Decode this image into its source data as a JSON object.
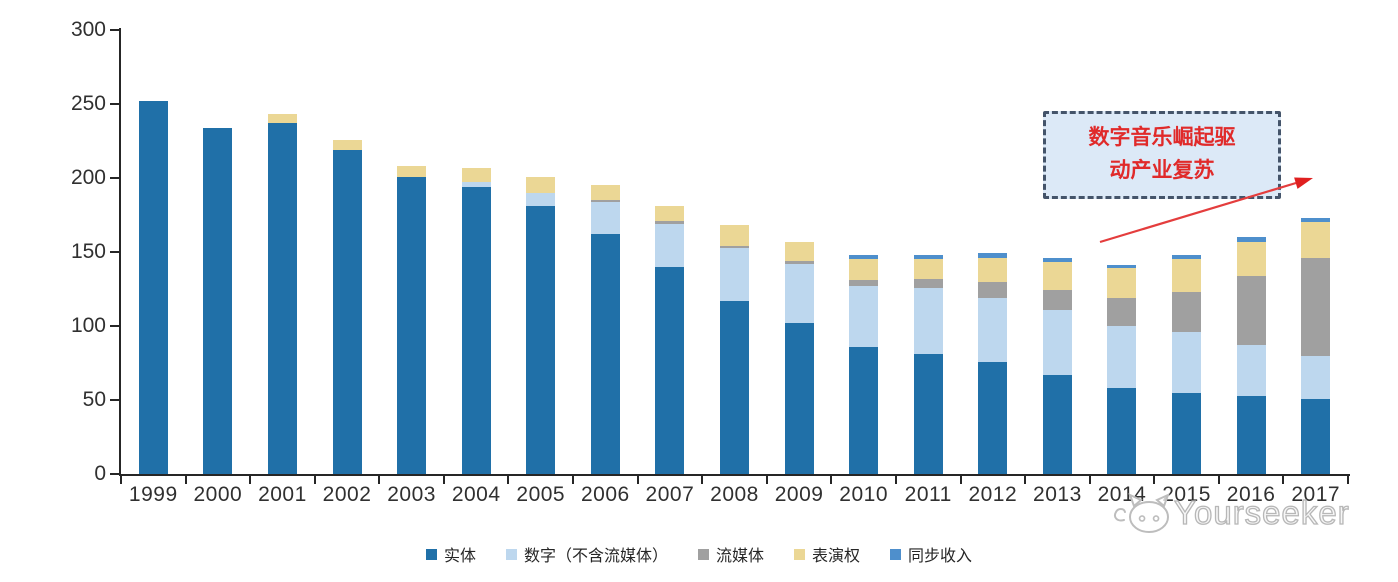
{
  "chart_data": {
    "type": "bar",
    "stacked": true,
    "title": "",
    "xlabel": "",
    "ylabel": "",
    "x": [
      "1999",
      "2000",
      "2001",
      "2002",
      "2003",
      "2004",
      "2005",
      "2006",
      "2007",
      "2008",
      "2009",
      "2010",
      "2011",
      "2012",
      "2013",
      "2014",
      "2015",
      "2016",
      "2017"
    ],
    "series": [
      {
        "key": "physical",
        "name": "实体",
        "color": "#2070A8",
        "values": [
          252,
          234,
          237,
          219,
          201,
          194,
          181,
          162,
          140,
          117,
          102,
          86,
          81,
          76,
          67,
          58,
          55,
          53,
          51
        ]
      },
      {
        "key": "digital",
        "name": "数字（不含流媒体）",
        "color": "#BDD7EE",
        "values": [
          0,
          0,
          0,
          0,
          0,
          3,
          9,
          22,
          29,
          36,
          40,
          41,
          45,
          43,
          44,
          42,
          41,
          34,
          29
        ]
      },
      {
        "key": "streaming",
        "name": "流媒体",
        "color": "#A0A0A0",
        "values": [
          0,
          0,
          0,
          0,
          0,
          0,
          0,
          1,
          2,
          1,
          2,
          4,
          6,
          11,
          13,
          19,
          27,
          47,
          66
        ]
      },
      {
        "key": "performance",
        "name": "表演权",
        "color": "#EBD795",
        "values": [
          0,
          0,
          6,
          7,
          7,
          10,
          11,
          10,
          10,
          14,
          13,
          14,
          13,
          16,
          19,
          20,
          22,
          23,
          24
        ]
      },
      {
        "key": "sync",
        "name": "同步收入",
        "color": "#4E8FCC",
        "values": [
          0,
          0,
          0,
          0,
          0,
          0,
          0,
          0,
          0,
          0,
          0,
          3,
          3,
          3,
          3,
          2,
          3,
          3,
          3
        ]
      }
    ],
    "ylim": [
      0,
      300
    ],
    "yticks": [
      0,
      50,
      100,
      150,
      200,
      250,
      300
    ],
    "legend_position": "bottom",
    "grid": false,
    "axis_color": "#262626",
    "label_color": "#303030"
  },
  "annotation": {
    "line1": "数字音乐崛起驱",
    "line2": "动产业复苏",
    "border_color": "#44546A",
    "fill_color": "#DCE9F7",
    "text_color": "#E02A2A",
    "arrow_color": "#E43D3D"
  },
  "watermark": {
    "text": "Yourseeker",
    "logo": "cat-logo",
    "color": "#BFBFBF"
  }
}
